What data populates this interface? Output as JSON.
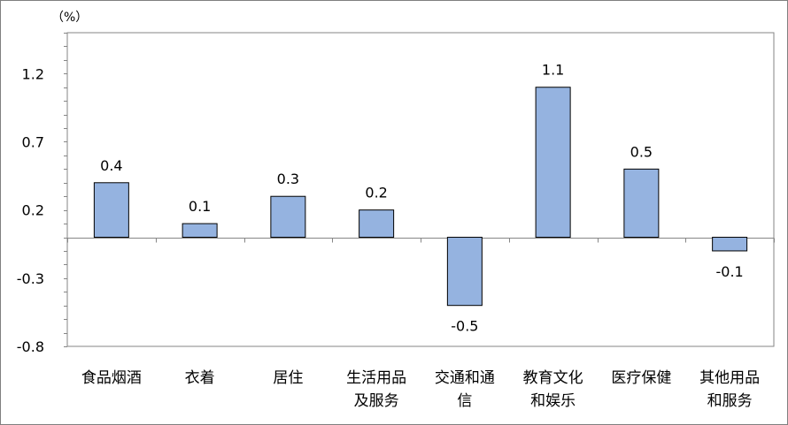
{
  "chart_data": {
    "type": "bar",
    "unit_label": "（%）",
    "categories": [
      [
        "食品烟酒"
      ],
      [
        "衣着"
      ],
      [
        "居住"
      ],
      [
        "生活用品",
        "及服务"
      ],
      [
        "交通和通",
        "信"
      ],
      [
        "教育文化",
        "和娱乐"
      ],
      [
        "医疗保健"
      ],
      [
        "其他用品",
        "和服务"
      ]
    ],
    "values": [
      0.4,
      0.1,
      0.3,
      0.2,
      -0.5,
      1.1,
      0.5,
      -0.1
    ],
    "data_labels": [
      "0.4",
      "0.1",
      "0.3",
      "0.2",
      "-0.5",
      "1.1",
      "0.5",
      "-0.1"
    ],
    "y_ticks": [
      1.2,
      0.7,
      0.2,
      -0.3,
      -0.8
    ],
    "y_tick_labels": [
      "1.2",
      "0.7",
      "0.2",
      "-0.3",
      "-0.8"
    ],
    "ylim": [
      -0.8,
      1.5
    ],
    "bar_color": "#95B3E0",
    "bar_edge_color": "#000000",
    "grid": false,
    "legend": "none"
  }
}
